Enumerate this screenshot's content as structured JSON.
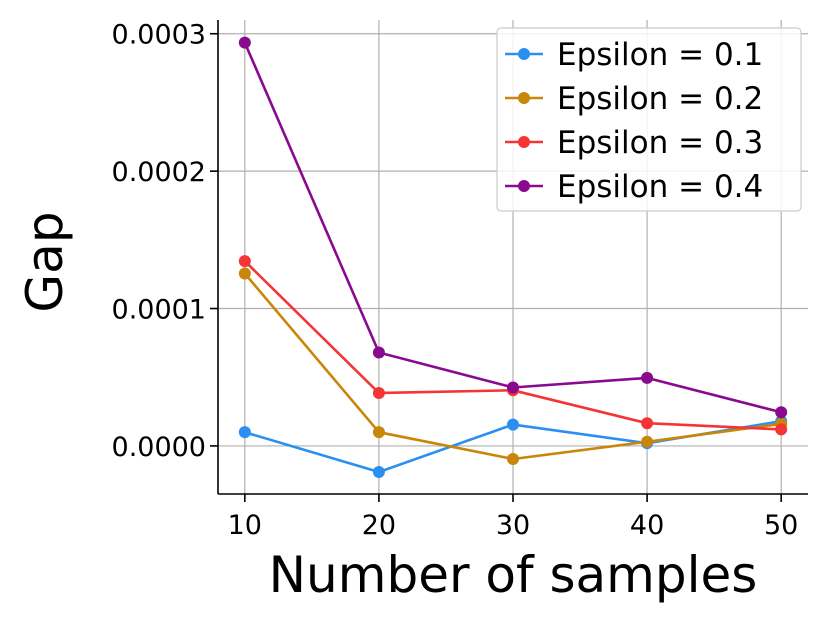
{
  "chart_data": {
    "type": "line",
    "title": "",
    "xlabel": "Number of samples",
    "ylabel": "Gap",
    "x": [
      10,
      20,
      30,
      40,
      50
    ],
    "xticks": [
      "10",
      "20",
      "30",
      "40",
      "50"
    ],
    "xlim": [
      8,
      52
    ],
    "yticks": [
      "0.0000",
      "0.0001",
      "0.0002",
      "0.0003"
    ],
    "ytick_values": [
      0,
      0.0001,
      0.0002,
      0.0003
    ],
    "ylim": [
      -3.5e-05,
      0.00031
    ],
    "grid": true,
    "legend_position": "top-right",
    "series": [
      {
        "name": "Epsilon = 0.1",
        "color": "#2a8ff0",
        "values": [
          1e-05,
          -1.9e-05,
          1.55e-05,
          2e-06,
          1.8e-05
        ]
      },
      {
        "name": "Epsilon = 0.2",
        "color": "#c8860a",
        "values": [
          0.0001255,
          1e-05,
          -9.5e-06,
          3e-06,
          1.6e-05
        ]
      },
      {
        "name": "Epsilon = 0.3",
        "color": "#f53535",
        "values": [
          0.0001345,
          3.85e-05,
          4.05e-05,
          1.65e-05,
          1.2e-05
        ]
      },
      {
        "name": "Epsilon = 0.4",
        "color": "#8a0a8f",
        "values": [
          0.0002935,
          6.8e-05,
          4.25e-05,
          4.95e-05,
          2.45e-05
        ]
      }
    ]
  }
}
